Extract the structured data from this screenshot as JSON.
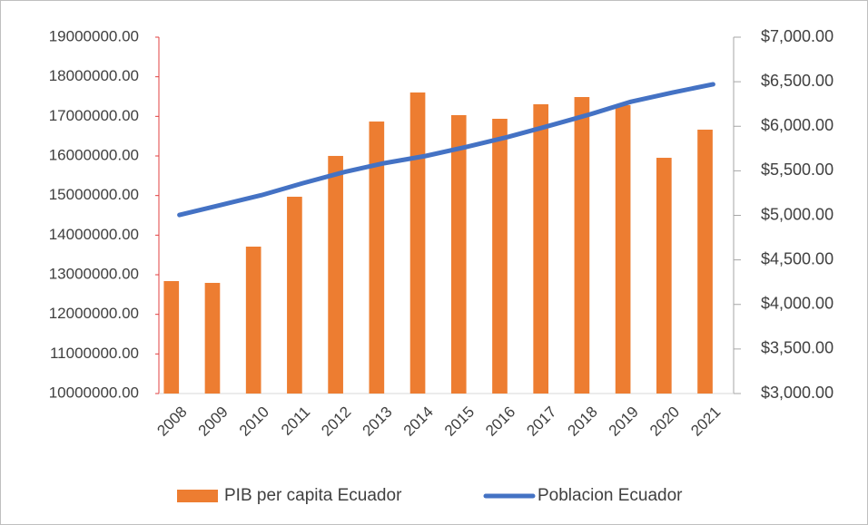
{
  "chart_data": {
    "type": "bar_line",
    "categories": [
      "2008",
      "2009",
      "2010",
      "2011",
      "2012",
      "2013",
      "2014",
      "2015",
      "2016",
      "2017",
      "2018",
      "2019",
      "2020",
      "2021"
    ],
    "series": [
      {
        "name": "PIB per capita Ecuador",
        "type": "bar",
        "axis": "y2",
        "color": "#ed7d31",
        "values": [
          4262,
          4242,
          4649,
          5209,
          5667,
          6053,
          6379,
          6125,
          6084,
          6247,
          6328,
          6237,
          5646,
          5962
        ]
      },
      {
        "name": "Poblacion Ecuador",
        "type": "line",
        "axis": "y",
        "color": "#4472c4",
        "values": [
          14510000,
          14760000,
          15010000,
          15310000,
          15590000,
          15820000,
          16000000,
          16230000,
          16480000,
          16760000,
          17050000,
          17370000,
          17600000,
          17810000
        ]
      }
    ],
    "ylim": [
      10000000,
      19000000
    ],
    "yticks": [
      {
        "value": 10000000,
        "label": "10000000.00"
      },
      {
        "value": 11000000,
        "label": "11000000.00"
      },
      {
        "value": 12000000,
        "label": "12000000.00"
      },
      {
        "value": 13000000,
        "label": "13000000.00"
      },
      {
        "value": 14000000,
        "label": "14000000.00"
      },
      {
        "value": 15000000,
        "label": "15000000.00"
      },
      {
        "value": 16000000,
        "label": "16000000.00"
      },
      {
        "value": 17000000,
        "label": "17000000.00"
      },
      {
        "value": 18000000,
        "label": "18000000.00"
      },
      {
        "value": 19000000,
        "label": "19000000.00"
      }
    ],
    "y2lim": [
      3000,
      7000
    ],
    "y2ticks": [
      {
        "value": 3000,
        "label": "$3,000.00"
      },
      {
        "value": 3500,
        "label": "$3,500.00"
      },
      {
        "value": 4000,
        "label": "$4,000.00"
      },
      {
        "value": 4500,
        "label": "$4,500.00"
      },
      {
        "value": 5000,
        "label": "$5,000.00"
      },
      {
        "value": 5500,
        "label": "$5,500.00"
      },
      {
        "value": 6000,
        "label": "$6,000.00"
      },
      {
        "value": 6500,
        "label": "$6,500.00"
      },
      {
        "value": 7000,
        "label": "$7,000.00"
      }
    ],
    "legend": "bottom"
  }
}
